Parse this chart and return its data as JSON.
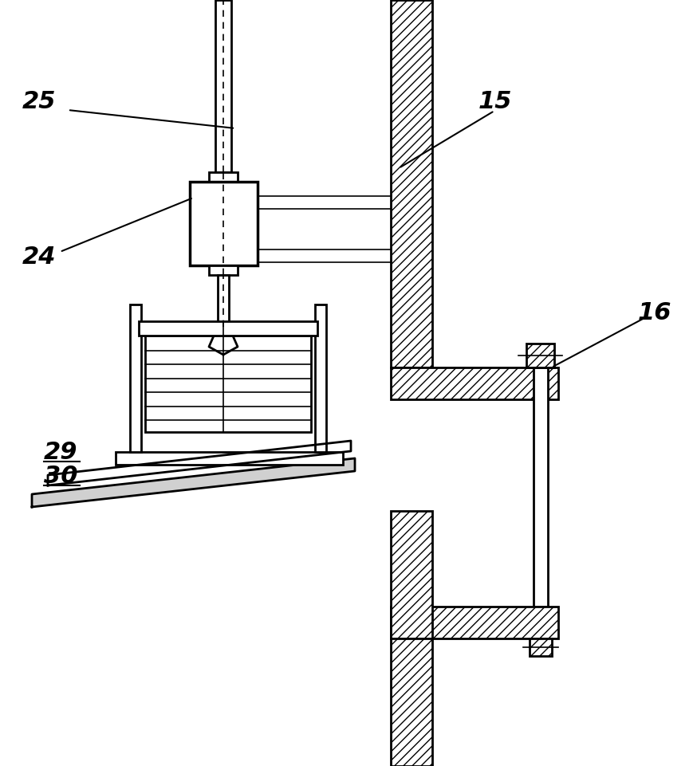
{
  "bg_color": "#ffffff",
  "lw": 2.0,
  "lw_thin": 1.2,
  "label_fontsize": 22
}
